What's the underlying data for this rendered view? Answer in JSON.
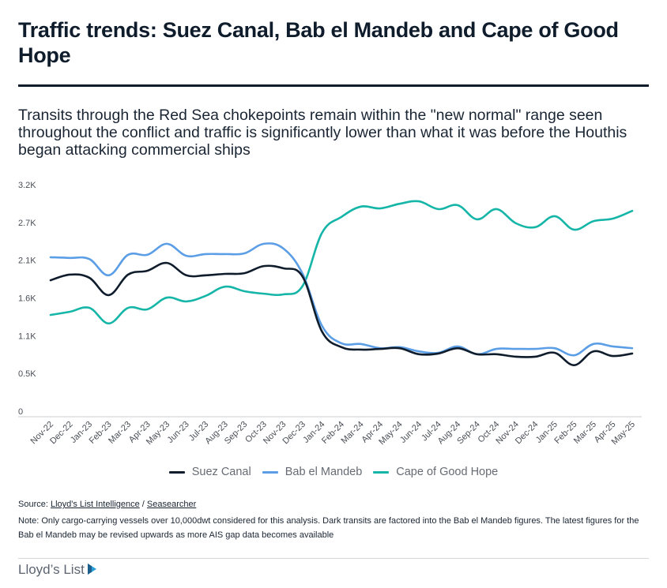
{
  "header": {
    "title": "Traffic trends: Suez Canal, Bab el Mandeb and Cape of Good Hope",
    "subtitle": "Transits through the Red Sea chokepoints remain within the \"new normal\" range seen throughout the conflict and traffic is significantly lower than what it was before the Houthis began attacking commercial ships"
  },
  "chart_data": {
    "type": "line",
    "title": "Traffic trends: Suez Canal, Bab el Mandeb and Cape of Good Hope",
    "xlabel": "",
    "ylabel": "",
    "ylim": [
      0,
      3200
    ],
    "yticks": [
      0,
      533,
      1067,
      1600,
      2133,
      2667,
      3200
    ],
    "ytick_labels": [
      "0",
      "0.5K",
      "1.1K",
      "1.6K",
      "2.1K",
      "2.7K",
      "3.2K"
    ],
    "grid": false,
    "legend_position": "bottom",
    "x": [
      "Nov-22",
      "Dec-22",
      "Jan-23",
      "Feb-23",
      "Mar-23",
      "Apr-23",
      "May-23",
      "Jun-23",
      "Jul-23",
      "Aug-23",
      "Sep-23",
      "Oct-23",
      "Nov-23",
      "Dec-23",
      "Jan-24",
      "Feb-24",
      "Mar-24",
      "Apr-24",
      "May-24",
      "Jun-24",
      "Jul-24",
      "Aug-24",
      "Sep-24",
      "Oct-24",
      "Nov-24",
      "Dec-24",
      "Jan-25",
      "Feb-25",
      "Mar-25",
      "Apr-25",
      "May-25"
    ],
    "series": [
      {
        "name": "Suez Canal",
        "color": "#0f1c2b",
        "values": [
          1850,
          1930,
          1885,
          1640,
          1930,
          1985,
          2095,
          1920,
          1920,
          1940,
          1950,
          2050,
          2020,
          1900,
          1125,
          905,
          870,
          880,
          890,
          805,
          815,
          890,
          805,
          805,
          770,
          770,
          825,
          650,
          845,
          780,
          815
        ]
      },
      {
        "name": "Bab el Mandeb",
        "color": "#5b9ee6",
        "values": [
          2175,
          2165,
          2150,
          1920,
          2210,
          2210,
          2365,
          2195,
          2220,
          2220,
          2230,
          2365,
          2300,
          1940,
          1205,
          960,
          950,
          890,
          905,
          845,
          825,
          915,
          805,
          880,
          880,
          880,
          890,
          790,
          950,
          915,
          890
        ]
      },
      {
        "name": "Cape of Good Hope",
        "color": "#15b5a8",
        "values": [
          1360,
          1405,
          1460,
          1240,
          1460,
          1440,
          1605,
          1550,
          1630,
          1760,
          1695,
          1660,
          1650,
          1770,
          2520,
          2745,
          2890,
          2865,
          2930,
          2965,
          2855,
          2910,
          2710,
          2855,
          2655,
          2600,
          2755,
          2565,
          2685,
          2720,
          2830
        ]
      }
    ]
  },
  "legend": [
    {
      "label": "Suez Canal",
      "color": "#0f1c2b"
    },
    {
      "label": "Bab el Mandeb",
      "color": "#5b9ee6"
    },
    {
      "label": "Cape of Good Hope",
      "color": "#15b5a8"
    }
  ],
  "footer": {
    "source_prefix": "Source: ",
    "source_link_1": "Lloyd's List Intelligence",
    "source_sep": " / ",
    "source_link_2": "Seasearcher",
    "note": "Note: Only cargo-carrying vessels over 10,000dwt considered for this analysis. Dark transits are factored into the Bab el Mandeb figures. The latest figures for the Bab el Mandeb may be revised upwards as more AIS gap data becomes available",
    "logo_text": "Lloyd’s List"
  }
}
